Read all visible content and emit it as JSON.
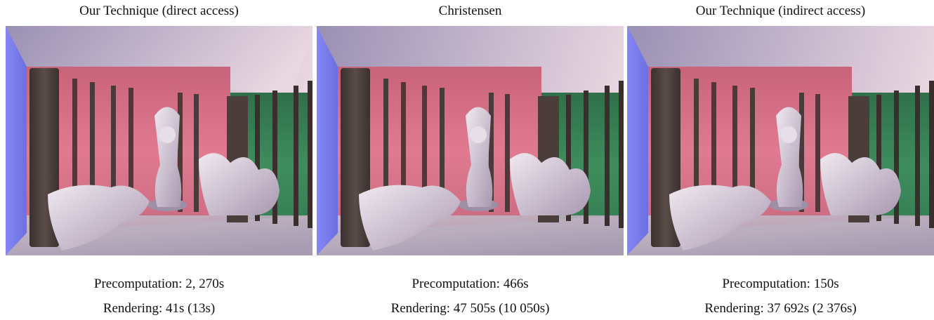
{
  "panels": [
    {
      "title": "Our Technique (direct access)",
      "precomputation": "Precomputation: 2, 270s",
      "rendering": "Rendering: 41s (13s)",
      "image_description": "Box room with left blue wall, dark pillar, red and green walls with pillars, ceramic Buddha statue and two white dragon statues"
    },
    {
      "title": "Christensen",
      "precomputation": "Precomputation: 466s",
      "rendering": "Rendering: 47 505s (10 050s)",
      "image_description": "Same scene rendered with Christensen method"
    },
    {
      "title": "Our Technique (indirect access)",
      "precomputation": "Precomputation: 150s",
      "rendering": "Rendering: 37 692s (2 376s)",
      "image_description": "Same scene rendered with indirect access technique"
    }
  ],
  "colors": {
    "blue_wall": "#7b7ef0",
    "red_wall": "#d97085",
    "green_wall": "#3f8a5f",
    "pillar": "#4a3d3a",
    "floor": "#bfb3c2",
    "ceiling": "#bcb0bc",
    "statue": "#d8d0dc"
  }
}
